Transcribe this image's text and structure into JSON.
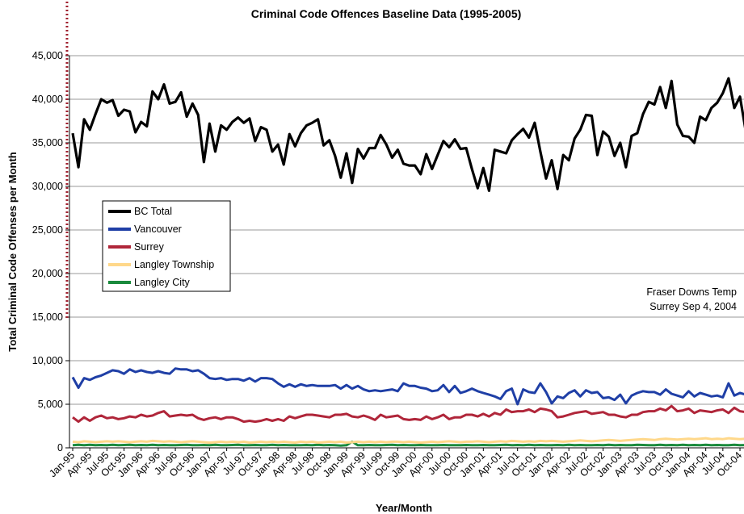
{
  "chart_data": {
    "type": "line",
    "title": "Criminal Code Offences Baseline Data (1995-2005)",
    "xlabel": "Year/Month",
    "ylabel": "Total Criminal Code Offenses per Month",
    "ylim": [
      0,
      45000
    ],
    "yticks": [
      "0",
      "5,000",
      "10,000",
      "15,000",
      "20,000",
      "25,000",
      "30,000",
      "35,000",
      "40,000",
      "45,000"
    ],
    "yticks_values": [
      0,
      5000,
      10000,
      15000,
      20000,
      25000,
      30000,
      35000,
      40000,
      45000
    ],
    "grid": true,
    "legend_position": "left-middle",
    "x_tick_labels": [
      "Jan-95",
      "Apr-95",
      "Jul-95",
      "Oct-95",
      "Jan-96",
      "Apr-96",
      "Jul-96",
      "Oct-96",
      "Jan-97",
      "Apr-97",
      "Jul-97",
      "Oct-97",
      "Jan-98",
      "Apr-98",
      "Jul-98",
      "Oct-98",
      "Jan-99",
      "Apr-99",
      "Jul-99",
      "Oct-99",
      "Jan-00",
      "Apr-00",
      "Jul-00",
      "Oct-00",
      "Jan-01",
      "Apr-01",
      "Jul-01",
      "Oct-01",
      "Jan-02",
      "Apr-02",
      "Jul-02",
      "Oct-02",
      "Jan-03",
      "Apr-03",
      "Jul-03",
      "Oct-03",
      "Jan-04",
      "Apr-04",
      "Jul-04",
      "Oct-04"
    ],
    "series": [
      {
        "name": "BC Total",
        "color": "#000000",
        "values": [
          36100,
          32200,
          37700,
          36500,
          38300,
          40000,
          39600,
          39900,
          38100,
          38800,
          38600,
          36200,
          37400,
          36900,
          40900,
          40000,
          41700,
          39500,
          39700,
          40800,
          38000,
          39500,
          38200,
          32800,
          37200,
          34000,
          37000,
          36500,
          37400,
          37900,
          37300,
          37800,
          35200,
          36800,
          36500,
          34000,
          34800,
          32500,
          36000,
          34600,
          36100,
          37000,
          37300,
          37700,
          34700,
          35300,
          33500,
          31000,
          33800,
          30400,
          34300,
          33200,
          34400,
          34400,
          35900,
          34800,
          33300,
          34200,
          32600,
          32400,
          32400,
          31400,
          33700,
          32000,
          33600,
          35200,
          34500,
          35400,
          34300,
          34400,
          32000,
          29800,
          32100,
          29500,
          34200,
          34000,
          33800,
          35300,
          36000,
          36600,
          35600,
          37300,
          34000,
          30900,
          33000,
          29700,
          33600,
          33000,
          35500,
          36500,
          38200,
          38100,
          33600,
          36300,
          35700,
          33500,
          35000,
          32200,
          35800,
          36100,
          38300,
          39700,
          39400,
          41400,
          39000,
          42100,
          37100,
          35800,
          35700,
          35000,
          38000,
          37600,
          39000,
          39600,
          40700,
          42400,
          39000,
          40300,
          36400,
          34000
        ]
      },
      {
        "name": "Vancouver",
        "color": "#1f3fa6",
        "values": [
          8100,
          6900,
          8000,
          7800,
          8100,
          8300,
          8600,
          8900,
          8800,
          8500,
          9000,
          8700,
          8900,
          8700,
          8600,
          8800,
          8600,
          8500,
          9100,
          9000,
          9000,
          8800,
          8900,
          8500,
          8000,
          7900,
          8000,
          7800,
          7900,
          7900,
          7700,
          8000,
          7600,
          8000,
          8000,
          7900,
          7400,
          7000,
          7300,
          7000,
          7300,
          7100,
          7200,
          7100,
          7100,
          7100,
          7200,
          6800,
          7200,
          6800,
          7100,
          6700,
          6500,
          6600,
          6500,
          6600,
          6700,
          6500,
          7400,
          7100,
          7100,
          6900,
          6800,
          6500,
          6600,
          7200,
          6400,
          7100,
          6300,
          6500,
          6800,
          6500,
          6300,
          6100,
          5900,
          5600,
          6500,
          6800,
          5000,
          6700,
          6400,
          6300,
          7400,
          6400,
          5100,
          5900,
          5700,
          6300,
          6600,
          5900,
          6600,
          6300,
          6400,
          5700,
          5800,
          5500,
          6100,
          5100,
          6000,
          6300,
          6500,
          6400,
          6400,
          6100,
          6700,
          6200,
          6000,
          5800,
          6500,
          5900,
          6300,
          6100,
          5900,
          6000,
          5800,
          7400,
          6000,
          6300,
          6100,
          5600
        ]
      },
      {
        "name": "Surrey",
        "color": "#b0263a",
        "values": [
          3500,
          3000,
          3500,
          3100,
          3500,
          3700,
          3400,
          3500,
          3300,
          3400,
          3600,
          3500,
          3800,
          3600,
          3700,
          4000,
          4200,
          3600,
          3700,
          3800,
          3700,
          3800,
          3400,
          3200,
          3400,
          3500,
          3300,
          3500,
          3500,
          3300,
          3000,
          3100,
          3000,
          3100,
          3300,
          3100,
          3300,
          3100,
          3600,
          3400,
          3600,
          3800,
          3800,
          3700,
          3600,
          3500,
          3800,
          3800,
          3900,
          3600,
          3500,
          3700,
          3500,
          3200,
          3800,
          3500,
          3600,
          3700,
          3300,
          3200,
          3300,
          3200,
          3600,
          3300,
          3500,
          3800,
          3300,
          3500,
          3500,
          3800,
          3800,
          3600,
          3900,
          3600,
          4000,
          3800,
          4400,
          4100,
          4200,
          4200,
          4400,
          4100,
          4500,
          4400,
          4200,
          3500,
          3600,
          3800,
          4000,
          4100,
          4200,
          3900,
          4000,
          4100,
          3800,
          3800,
          3600,
          3500,
          3800,
          3800,
          4100,
          4200,
          4200,
          4500,
          4300,
          4800,
          4200,
          4300,
          4500,
          4000,
          4300,
          4200,
          4100,
          4300,
          4400,
          4000,
          4600,
          4200,
          4100,
          4000
        ]
      },
      {
        "name": "Langley Township",
        "color": "#ffd88a",
        "values": [
          700,
          650,
          750,
          700,
          650,
          700,
          750,
          700,
          750,
          700,
          650,
          700,
          750,
          700,
          800,
          750,
          700,
          750,
          700,
          650,
          700,
          750,
          700,
          650,
          600,
          650,
          700,
          650,
          700,
          650,
          700,
          600,
          650,
          700,
          650,
          700,
          650,
          700,
          650,
          600,
          700,
          650,
          700,
          600,
          650,
          700,
          650,
          700,
          600,
          650,
          700,
          650,
          700,
          650,
          700,
          650,
          700,
          700,
          650,
          700,
          650,
          600,
          650,
          700,
          650,
          700,
          750,
          700,
          650,
          700,
          700,
          750,
          700,
          650,
          700,
          750,
          700,
          800,
          750,
          700,
          750,
          700,
          800,
          750,
          800,
          750,
          700,
          750,
          800,
          850,
          800,
          750,
          800,
          850,
          900,
          850,
          800,
          850,
          900,
          950,
          1000,
          950,
          900,
          1000,
          1050,
          1000,
          950,
          1000,
          1050,
          1000,
          1050,
          1100,
          1000,
          1050,
          1000,
          1100,
          1050,
          1000,
          1050,
          1000
        ]
      },
      {
        "name": "Langley City",
        "color": "#1a8a3c",
        "values": [
          300,
          350,
          300,
          350,
          300,
          320,
          300,
          350,
          300,
          320,
          350,
          300,
          320,
          300,
          350,
          300,
          320,
          300,
          300,
          320,
          350,
          300,
          300,
          320,
          300,
          350,
          300,
          300,
          320,
          350,
          300,
          300,
          320,
          300,
          300,
          350,
          300,
          320,
          300,
          300,
          300,
          320,
          300,
          350,
          300,
          320,
          300,
          250,
          300,
          700,
          300,
          300,
          320,
          300,
          300,
          320,
          350,
          300,
          320,
          300,
          300,
          320,
          300,
          300,
          300,
          320,
          300,
          300,
          300,
          320,
          300,
          300,
          320,
          300,
          300,
          320,
          350,
          300,
          320,
          300,
          350,
          300,
          320,
          300,
          300,
          320,
          300,
          350,
          300,
          320,
          300,
          300,
          320,
          300,
          350,
          300,
          320,
          300,
          300,
          350,
          320,
          300,
          300,
          350,
          300,
          320,
          300,
          350,
          300,
          320,
          300,
          350,
          300,
          320,
          300,
          300,
          350,
          300,
          320,
          300
        ]
      }
    ],
    "annotation": {
      "line1": "Fraser Downs Temp",
      "line2": "Surrey Sep 4, 2004",
      "target_label": "Sep-04"
    }
  }
}
